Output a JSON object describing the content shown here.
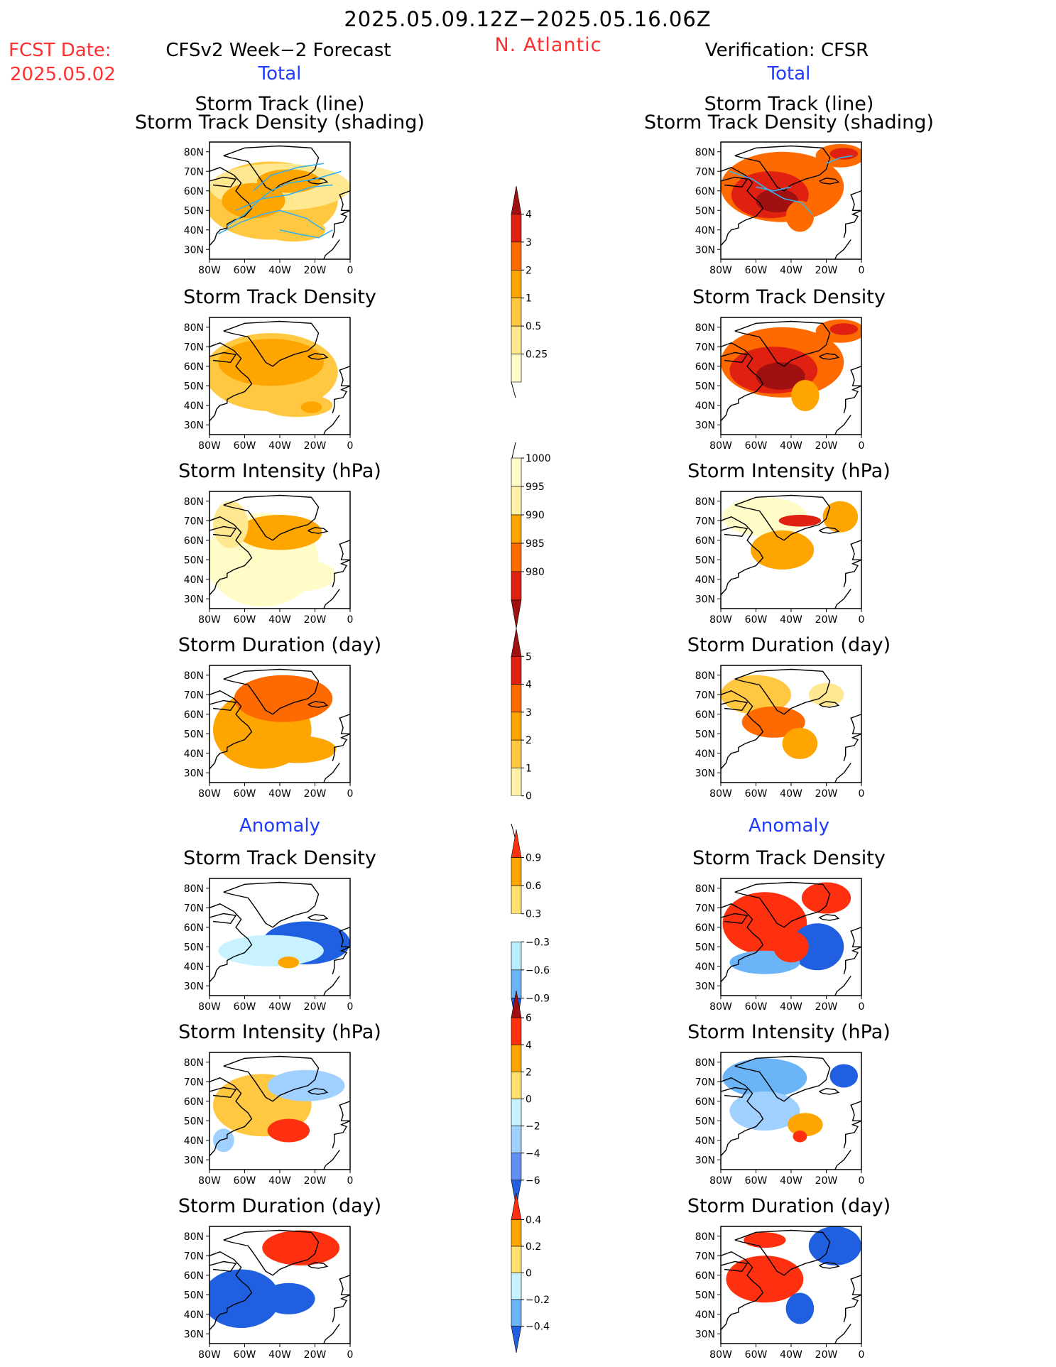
{
  "header": {
    "period": "2025.05.09.12Z−2025.05.16.06Z",
    "fcst_label": "FCST Date:",
    "fcst_date": "2025.05.02",
    "left_title": "CFSv2 Week−2 Forecast",
    "region": "N. Atlantic",
    "right_title": "Verification: CFSR",
    "total": "Total",
    "anomaly": "Anomaly"
  },
  "colors": {
    "title_red": "#ff3030",
    "section_blue": "#1f3bff",
    "track_line": "#3ab0e8"
  },
  "chart_data": {
    "type": "heatmap",
    "map_extent": {
      "lon": [
        -80,
        0
      ],
      "lat": [
        25,
        85
      ]
    },
    "lat_ticks": [
      "80N",
      "70N",
      "60N",
      "50N",
      "40N",
      "30N"
    ],
    "lon_ticks": [
      "80W",
      "60W",
      "40W",
      "20W",
      "0"
    ],
    "rows": [
      {
        "left": "Storm Track (line)\nStorm Track Density (shading)",
        "right": "Storm Track (line)\nStorm Track Density (shading)",
        "left_text": {
          "line1": "Storm Track (line)",
          "line2": "Storm Track Density (shading)"
        },
        "right_text": {
          "line1": "Storm Track (line)",
          "line2": "Storm Track Density (shading)"
        }
      },
      {
        "left_text": {
          "line1": "Storm Track Density"
        },
        "right_text": {
          "line1": "Storm Track Density"
        }
      },
      {
        "left_text": {
          "line1": "Storm Intensity (hPa)"
        },
        "right_text": {
          "line1": "Storm Intensity (hPa)"
        }
      },
      {
        "left_text": {
          "line1": "Storm Duration (day)"
        },
        "right_text": {
          "line1": "Storm Duration (day)"
        }
      },
      {
        "left_text": {
          "line1": "Storm Track Density"
        },
        "right_text": {
          "line1": "Storm Track Density"
        }
      },
      {
        "left_text": {
          "line1": "Storm Intensity (hPa)"
        },
        "right_text": {
          "line1": "Storm Intensity (hPa)"
        }
      },
      {
        "left_text": {
          "line1": "Storm Duration (day)"
        },
        "right_text": {
          "line1": "Storm Duration (day)"
        }
      }
    ],
    "colorbars": [
      {
        "name": "density",
        "levels": [
          "4",
          "3",
          "2",
          "1",
          "0.5",
          "0.25"
        ],
        "colors": [
          "#a01010",
          "#e02010",
          "#ff6a00",
          "#ffa500",
          "#ffc840",
          "#ffe890",
          "#fffcc8"
        ]
      },
      {
        "name": "intensity",
        "levels": [
          "1000",
          "995",
          "990",
          "985",
          "980"
        ],
        "colors": [
          "#fffcc8",
          "#fff1a8",
          "#ffa500",
          "#ff6a00",
          "#e02010",
          "#a01010"
        ]
      },
      {
        "name": "duration",
        "levels": [
          "5",
          "4",
          "3",
          "2",
          "1",
          "0"
        ],
        "colors": [
          "#a01010",
          "#e02010",
          "#ff6a00",
          "#ffa500",
          "#ffc840",
          "#fff1a8",
          "#ffffff"
        ]
      },
      {
        "name": "density_anom",
        "levels": [
          "0.9",
          "0.6",
          "0.3",
          "−0.3",
          "−0.6",
          "−0.9"
        ],
        "colors": [
          "#ff3010",
          "#ffa500",
          "#ffe070",
          "#ffffff",
          "#b8ecff",
          "#6cb4f8",
          "#2060e0"
        ]
      },
      {
        "name": "intensity_anom",
        "levels": [
          "6",
          "4",
          "2",
          "0",
          "−2",
          "−4",
          "−6"
        ],
        "colors": [
          "#a01010",
          "#ff3010",
          "#ffa500",
          "#ffe070",
          "#c8f2ff",
          "#a0d0ff",
          "#6090f0",
          "#2060e0"
        ]
      },
      {
        "name": "duration_anom",
        "levels": [
          "0.4",
          "0.2",
          "0",
          "−0.2",
          "−0.4"
        ],
        "colors": [
          "#ff3010",
          "#ffa500",
          "#ffe070",
          "#c8f2ff",
          "#6cb4f8",
          "#2060e0"
        ]
      }
    ]
  }
}
